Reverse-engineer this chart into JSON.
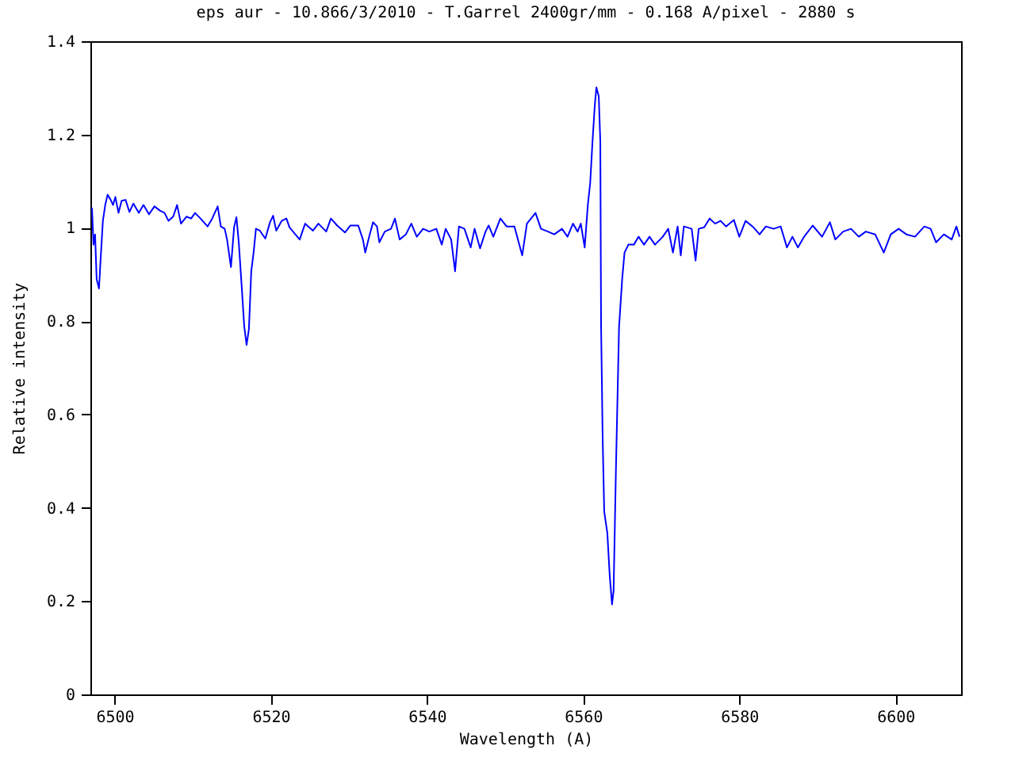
{
  "chart_data": {
    "type": "line",
    "title": "eps aur - 10.866/3/2010 - T.Garrel 2400gr/mm - 0.168 A/pixel - 2880 s",
    "xlabel": "Wavelength (A)",
    "ylabel": "Relative intensity",
    "xlim": [
      6496.9,
      6608.4
    ],
    "xticks": [
      6500,
      6520,
      6540,
      6560,
      6580,
      6600
    ],
    "ylim": [
      0,
      1.4
    ],
    "yticks": [
      0,
      0.2,
      0.4,
      0.6,
      0.8,
      1,
      1.2,
      1.4
    ],
    "grid": false,
    "marker": "none",
    "line_style": "solid",
    "series": [
      {
        "color": "#0000ff",
        "x": [
          6497.1,
          6497.3,
          6497.5,
          6497.7,
          6498.0,
          6498.2,
          6498.5,
          6498.8,
          6499.1,
          6499.5,
          6499.8,
          6500.1,
          6500.5,
          6500.9,
          6501.4,
          6501.9,
          6502.4,
          6503.1,
          6503.7,
          6504.4,
          6505.1,
          6505.8,
          6506.4,
          6506.9,
          6507.5,
          6508.0,
          6508.5,
          6509.2,
          6509.8,
          6510.3,
          6511.0,
          6511.9,
          6512.5,
          6513.2,
          6513.6,
          6514.1,
          6514.4,
          6514.9,
          6515.3,
          6515.6,
          6515.9,
          6516.3,
          6516.6,
          6516.9,
          6517.2,
          6517.5,
          6517.8,
          6518.1,
          6518.6,
          6519.3,
          6519.9,
          6520.3,
          6520.7,
          6521.4,
          6522.0,
          6522.4,
          6523.7,
          6524.4,
          6525.4,
          6526.1,
          6527.1,
          6527.7,
          6528.5,
          6529.5,
          6530.2,
          6531.2,
          6531.8,
          6532.1,
          6532.6,
          6533.1,
          6533.6,
          6533.9,
          6534.6,
          6535.4,
          6535.9,
          6536.5,
          6537.3,
          6538.0,
          6538.7,
          6539.5,
          6540.3,
          6541.2,
          6541.9,
          6542.4,
          6543.1,
          6543.6,
          6544.1,
          6544.8,
          6545.6,
          6546.1,
          6546.8,
          6547.5,
          6547.9,
          6548.5,
          6549.4,
          6550.2,
          6551.2,
          6552.2,
          6552.8,
          6553.9,
          6554.6,
          6555.5,
          6556.3,
          6557.3,
          6558.0,
          6558.7,
          6559.3,
          6559.7,
          6560.2,
          6560.6,
          6560.9,
          6561.2,
          6561.5,
          6561.7,
          6562.0,
          6562.2,
          6562.3,
          6562.5,
          6562.7,
          6563.1,
          6563.4,
          6563.7,
          6563.9,
          6564.2,
          6564.6,
          6565.0,
          6565.3,
          6565.8,
          6566.5,
          6567.1,
          6567.8,
          6568.5,
          6569.2,
          6570.2,
          6570.9,
          6571.5,
          6572.1,
          6572.5,
          6572.9,
          6573.9,
          6574.4,
          6574.8,
          6575.5,
          6576.2,
          6576.9,
          6577.6,
          6578.3,
          6579.3,
          6580.0,
          6580.8,
          6581.7,
          6582.6,
          6583.4,
          6584.4,
          6585.3,
          6586.1,
          6586.8,
          6587.5,
          6588.3,
          6589.4,
          6590.6,
          6591.6,
          6592.3,
          6593.3,
          6594.3,
          6595.3,
          6596.2,
          6597.4,
          6598.5,
          6599.4,
          6600.4,
          6601.4,
          6602.5,
          6603.7,
          6604.5,
          6605.2,
          6606.2,
          6607.2,
          6607.8,
          6608.2
        ],
        "values": [
          1.043,
          0.964,
          0.986,
          0.89,
          0.87,
          0.93,
          1.015,
          1.049,
          1.071,
          1.06,
          1.049,
          1.066,
          1.032,
          1.058,
          1.06,
          1.034,
          1.052,
          1.032,
          1.049,
          1.029,
          1.046,
          1.037,
          1.032,
          1.015,
          1.024,
          1.049,
          1.009,
          1.024,
          1.02,
          1.032,
          1.02,
          1.003,
          1.02,
          1.046,
          1.003,
          0.998,
          0.975,
          0.916,
          1.001,
          1.023,
          0.969,
          0.868,
          0.789,
          0.749,
          0.783,
          0.907,
          0.947,
          0.998,
          0.994,
          0.977,
          1.012,
          1.026,
          0.994,
          1.015,
          1.02,
          1.001,
          0.975,
          1.009,
          0.994,
          1.009,
          0.992,
          1.02,
          1.005,
          0.99,
          1.005,
          1.005,
          0.975,
          0.947,
          0.981,
          1.012,
          1.003,
          0.969,
          0.992,
          0.998,
          1.02,
          0.975,
          0.986,
          1.009,
          0.981,
          0.998,
          0.992,
          0.998,
          0.964,
          0.998,
          0.975,
          0.907,
          1.003,
          0.998,
          0.958,
          0.998,
          0.956,
          0.992,
          1.005,
          0.981,
          1.02,
          1.003,
          1.003,
          0.941,
          1.009,
          1.032,
          0.998,
          0.992,
          0.986,
          0.998,
          0.981,
          1.009,
          0.992,
          1.009,
          0.958,
          1.049,
          1.095,
          1.185,
          1.264,
          1.301,
          1.282,
          1.185,
          0.788,
          0.55,
          0.392,
          0.346,
          0.256,
          0.193,
          0.222,
          0.482,
          0.788,
          0.89,
          0.947,
          0.964,
          0.964,
          0.981,
          0.964,
          0.981,
          0.964,
          0.981,
          0.998,
          0.947,
          1.003,
          0.941,
          1.003,
          0.998,
          0.93,
          0.998,
          1.001,
          1.02,
          1.009,
          1.015,
          1.003,
          1.017,
          0.981,
          1.015,
          1.003,
          0.986,
          1.003,
          0.998,
          1.003,
          0.958,
          0.981,
          0.958,
          0.981,
          1.005,
          0.981,
          1.012,
          0.975,
          0.992,
          0.998,
          0.981,
          0.992,
          0.986,
          0.947,
          0.986,
          0.998,
          0.986,
          0.981,
          1.003,
          0.998,
          0.969,
          0.986,
          0.975,
          1.003,
          0.981
        ]
      }
    ]
  }
}
